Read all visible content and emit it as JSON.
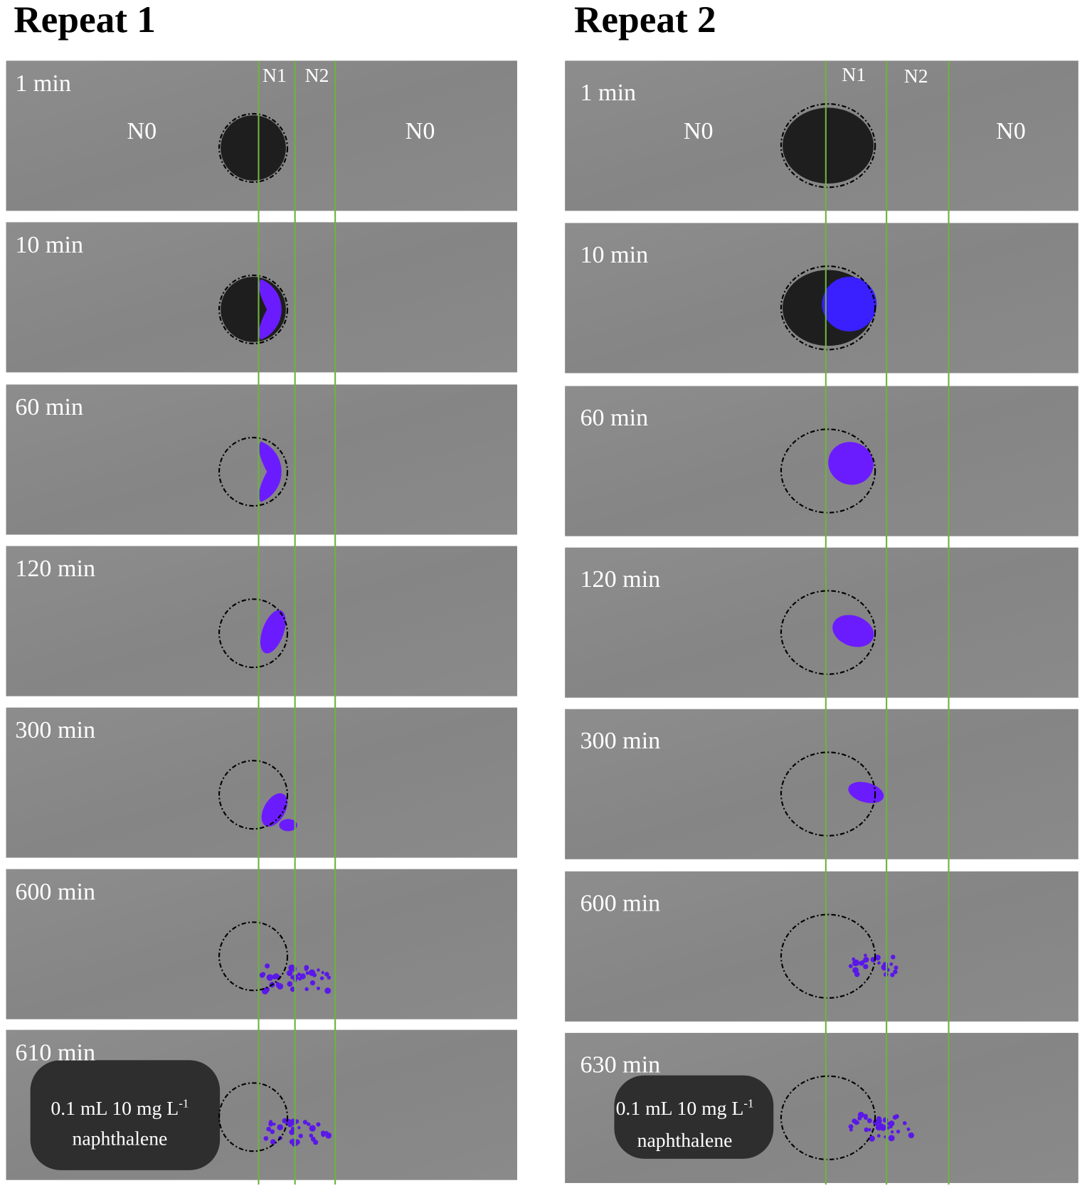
{
  "repeats": [
    {
      "title": "Repeat 1",
      "panels": [
        "1 min",
        "10 min",
        "60 min",
        "120 min",
        "300 min",
        "600 min",
        "610 min"
      ],
      "zone_labels": [
        "N0",
        "N1",
        "N2",
        "N0"
      ],
      "annotation": {
        "line1": "0.1  mL 10 mg L",
        "superscript": "-1",
        "line2": "naphthalene"
      }
    },
    {
      "title": "Repeat 2",
      "panels": [
        "1 min",
        "10 min",
        "60 min",
        "120 min",
        "300 min",
        "600 min",
        "630 min"
      ],
      "zone_labels": [
        "N0",
        "N1",
        "N2",
        "N0"
      ],
      "annotation": {
        "line1": "0.1  mL 10 mg L",
        "superscript": "-1",
        "line2": "naphthalene"
      }
    }
  ]
}
